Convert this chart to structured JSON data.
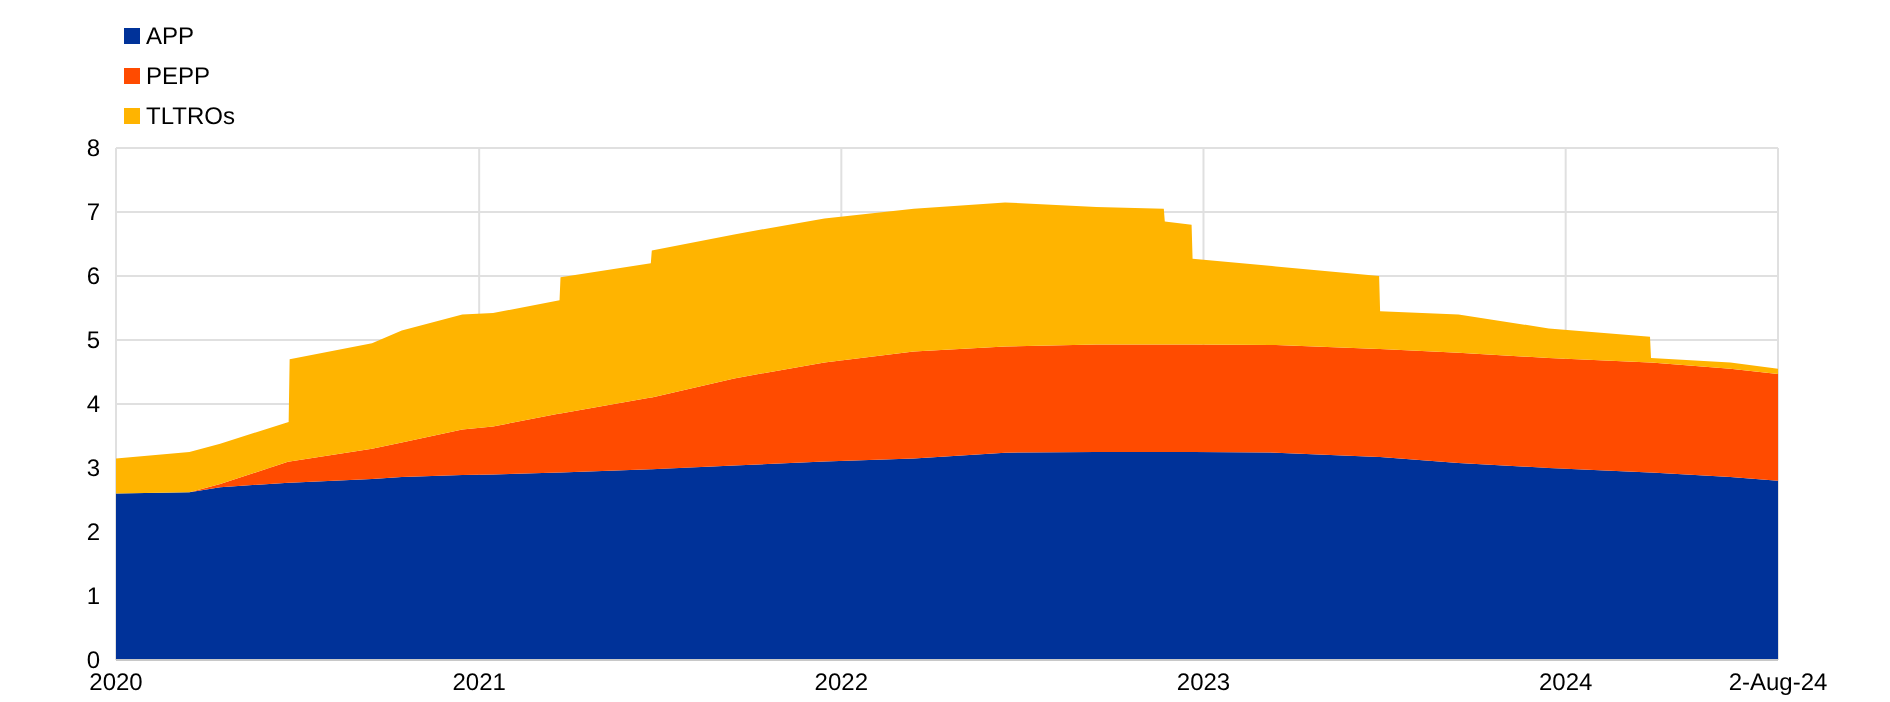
{
  "chart_data": {
    "type": "area",
    "stacked": true,
    "x": [
      "2020-01-01",
      "2020-03-15",
      "2020-04-15",
      "2020-06-23",
      "2020-06-24",
      "2020-09-15",
      "2020-10-15",
      "2020-12-15",
      "2021-01-15",
      "2021-03-23",
      "2021-03-24",
      "2021-06-23",
      "2021-06-24",
      "2021-09-15",
      "2021-12-15",
      "2022-03-15",
      "2022-06-15",
      "2022-09-15",
      "2022-11-22",
      "2022-11-23",
      "2022-12-20",
      "2022-12-21",
      "2023-03-15",
      "2023-06-27",
      "2023-06-28",
      "2023-09-15",
      "2023-12-15",
      "2024-03-26",
      "2024-03-27",
      "2024-06-15",
      "2024-08-02"
    ],
    "series": [
      {
        "name": "APP",
        "color": "#003299",
        "values": [
          2.6,
          2.62,
          2.7,
          2.77,
          2.77,
          2.83,
          2.86,
          2.89,
          2.9,
          2.93,
          2.93,
          2.98,
          2.98,
          3.04,
          3.1,
          3.15,
          3.24,
          3.25,
          3.25,
          3.25,
          3.25,
          3.25,
          3.24,
          3.17,
          3.17,
          3.08,
          3.0,
          2.93,
          2.93,
          2.86,
          2.8
        ]
      },
      {
        "name": "PEPP",
        "color": "#ff4b00",
        "values": [
          0,
          0,
          0.05,
          0.33,
          0.33,
          0.47,
          0.54,
          0.71,
          0.75,
          0.92,
          0.92,
          1.12,
          1.12,
          1.36,
          1.55,
          1.67,
          1.66,
          1.68,
          1.68,
          1.68,
          1.68,
          1.68,
          1.68,
          1.69,
          1.69,
          1.72,
          1.72,
          1.72,
          1.72,
          1.69,
          1.67
        ]
      },
      {
        "name": "TLTROs",
        "color": "#ffb400",
        "values": [
          0.55,
          0.63,
          0.63,
          0.62,
          1.6,
          1.65,
          1.75,
          1.8,
          1.77,
          1.77,
          2.13,
          2.1,
          2.3,
          2.25,
          2.25,
          2.23,
          2.25,
          2.15,
          2.12,
          1.92,
          1.87,
          1.34,
          1.23,
          1.14,
          0.59,
          0.6,
          0.46,
          0.4,
          0.07,
          0.1,
          0.08
        ]
      }
    ],
    "xlim": [
      "2020-01-01",
      "2024-08-02"
    ],
    "xticks": [
      {
        "value": "2020-01-01",
        "label": "2020"
      },
      {
        "value": "2021-01-01",
        "label": "2021"
      },
      {
        "value": "2022-01-01",
        "label": "2022"
      },
      {
        "value": "2023-01-01",
        "label": "2023"
      },
      {
        "value": "2024-01-01",
        "label": "2024"
      },
      {
        "value": "2024-08-02",
        "label": "2-Aug-24"
      }
    ],
    "ylim": [
      0,
      8
    ],
    "yticks": [
      0,
      1,
      2,
      3,
      4,
      5,
      6,
      7,
      8
    ],
    "grid": true,
    "legend": "top left"
  }
}
